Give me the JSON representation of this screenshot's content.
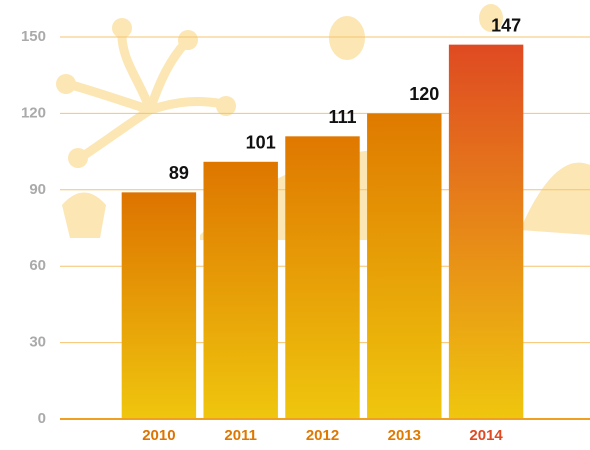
{
  "chart_data": {
    "type": "bar",
    "categories": [
      "2010",
      "2011",
      "2012",
      "2013",
      "2014"
    ],
    "values": [
      89,
      101,
      111,
      120,
      147
    ],
    "colors": [
      "#dd7300",
      "#de7600",
      "#df7800",
      "#df7a00",
      "#df4a22"
    ],
    "ylim": [
      0,
      150
    ],
    "yticks": [
      0,
      30,
      60,
      90,
      120,
      150
    ],
    "grid": true
  }
}
